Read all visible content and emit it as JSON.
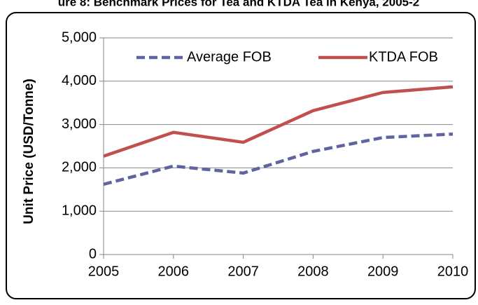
{
  "chart_data": {
    "type": "line",
    "title": "ure 8: Benchmark Prices for Tea and KTDA Tea in Kenya, 2005-2",
    "y_label": "Unit Price (USD/Tonne)",
    "x": [
      2005,
      2006,
      2007,
      2008,
      2009,
      2010
    ],
    "xlim": [
      2005,
      2010
    ],
    "xticks": [
      2005,
      2006,
      2007,
      2008,
      2009,
      2010
    ],
    "ylim": [
      0,
      5000
    ],
    "yticks": [
      0,
      {
        "value": 1000,
        "label": "1,000"
      },
      {
        "value": 2000,
        "label": "2,000"
      },
      {
        "value": 3000,
        "label": "3,000"
      },
      {
        "value": 4000,
        "label": "4,000"
      },
      {
        "value": 5000,
        "label": "5,000"
      }
    ],
    "grid": true,
    "legend": "top",
    "series": [
      {
        "name": "Average FOB",
        "color": "#5f63a0",
        "dashed": true,
        "values": [
          1620,
          2040,
          1880,
          2380,
          2700,
          2780
        ]
      },
      {
        "name": "KTDA FOB",
        "color": "#c0504d",
        "dashed": false,
        "values": [
          2270,
          2820,
          2590,
          3320,
          3740,
          3870
        ]
      }
    ]
  }
}
